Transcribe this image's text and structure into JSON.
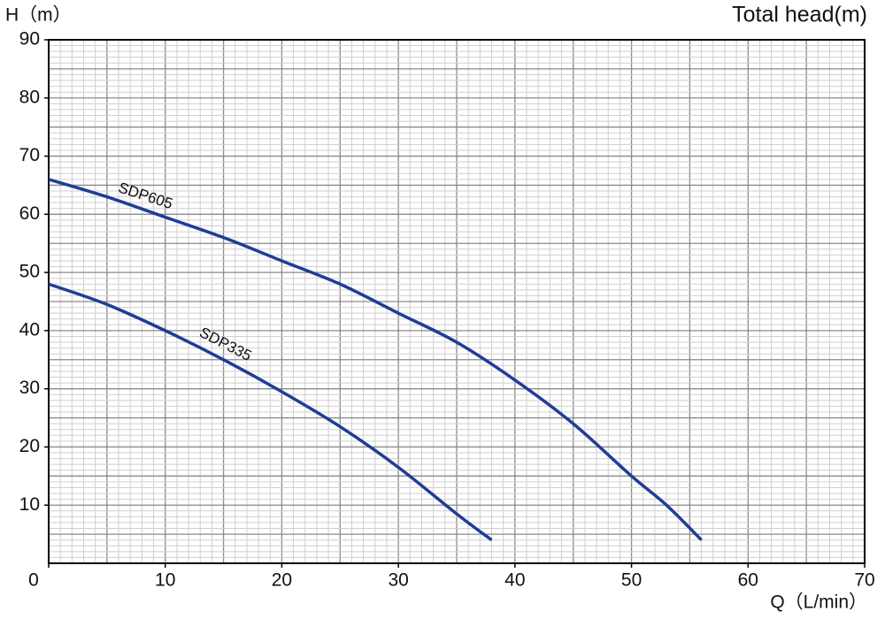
{
  "chart_data": {
    "type": "line",
    "title": "Total head(m)",
    "y_label": "H（m）",
    "x_label": "Q（L/min）",
    "series": [
      {
        "name": "SDP605",
        "color": "#1f3d96",
        "x": [
          0,
          5,
          10,
          15,
          20,
          25,
          30,
          35,
          40,
          45,
          50,
          53,
          56
        ],
        "values": [
          66,
          63,
          59.5,
          56,
          52,
          48,
          43,
          38,
          31.5,
          24,
          15,
          10,
          4
        ]
      },
      {
        "name": "SDP335",
        "color": "#1f3d96",
        "x": [
          0,
          5,
          10,
          15,
          20,
          25,
          30,
          35,
          38
        ],
        "values": [
          48,
          44.5,
          40,
          35,
          29.5,
          23.5,
          16.5,
          8.5,
          4
        ]
      }
    ],
    "xlim": [
      0,
      70
    ],
    "xticks": [
      0,
      10,
      20,
      30,
      40,
      50,
      60,
      70
    ],
    "ylim": [
      0,
      90
    ],
    "yticks": [
      10,
      20,
      30,
      40,
      50,
      60,
      70,
      80,
      90
    ],
    "grid": true,
    "minor_step": 1,
    "major_step": 5
  }
}
